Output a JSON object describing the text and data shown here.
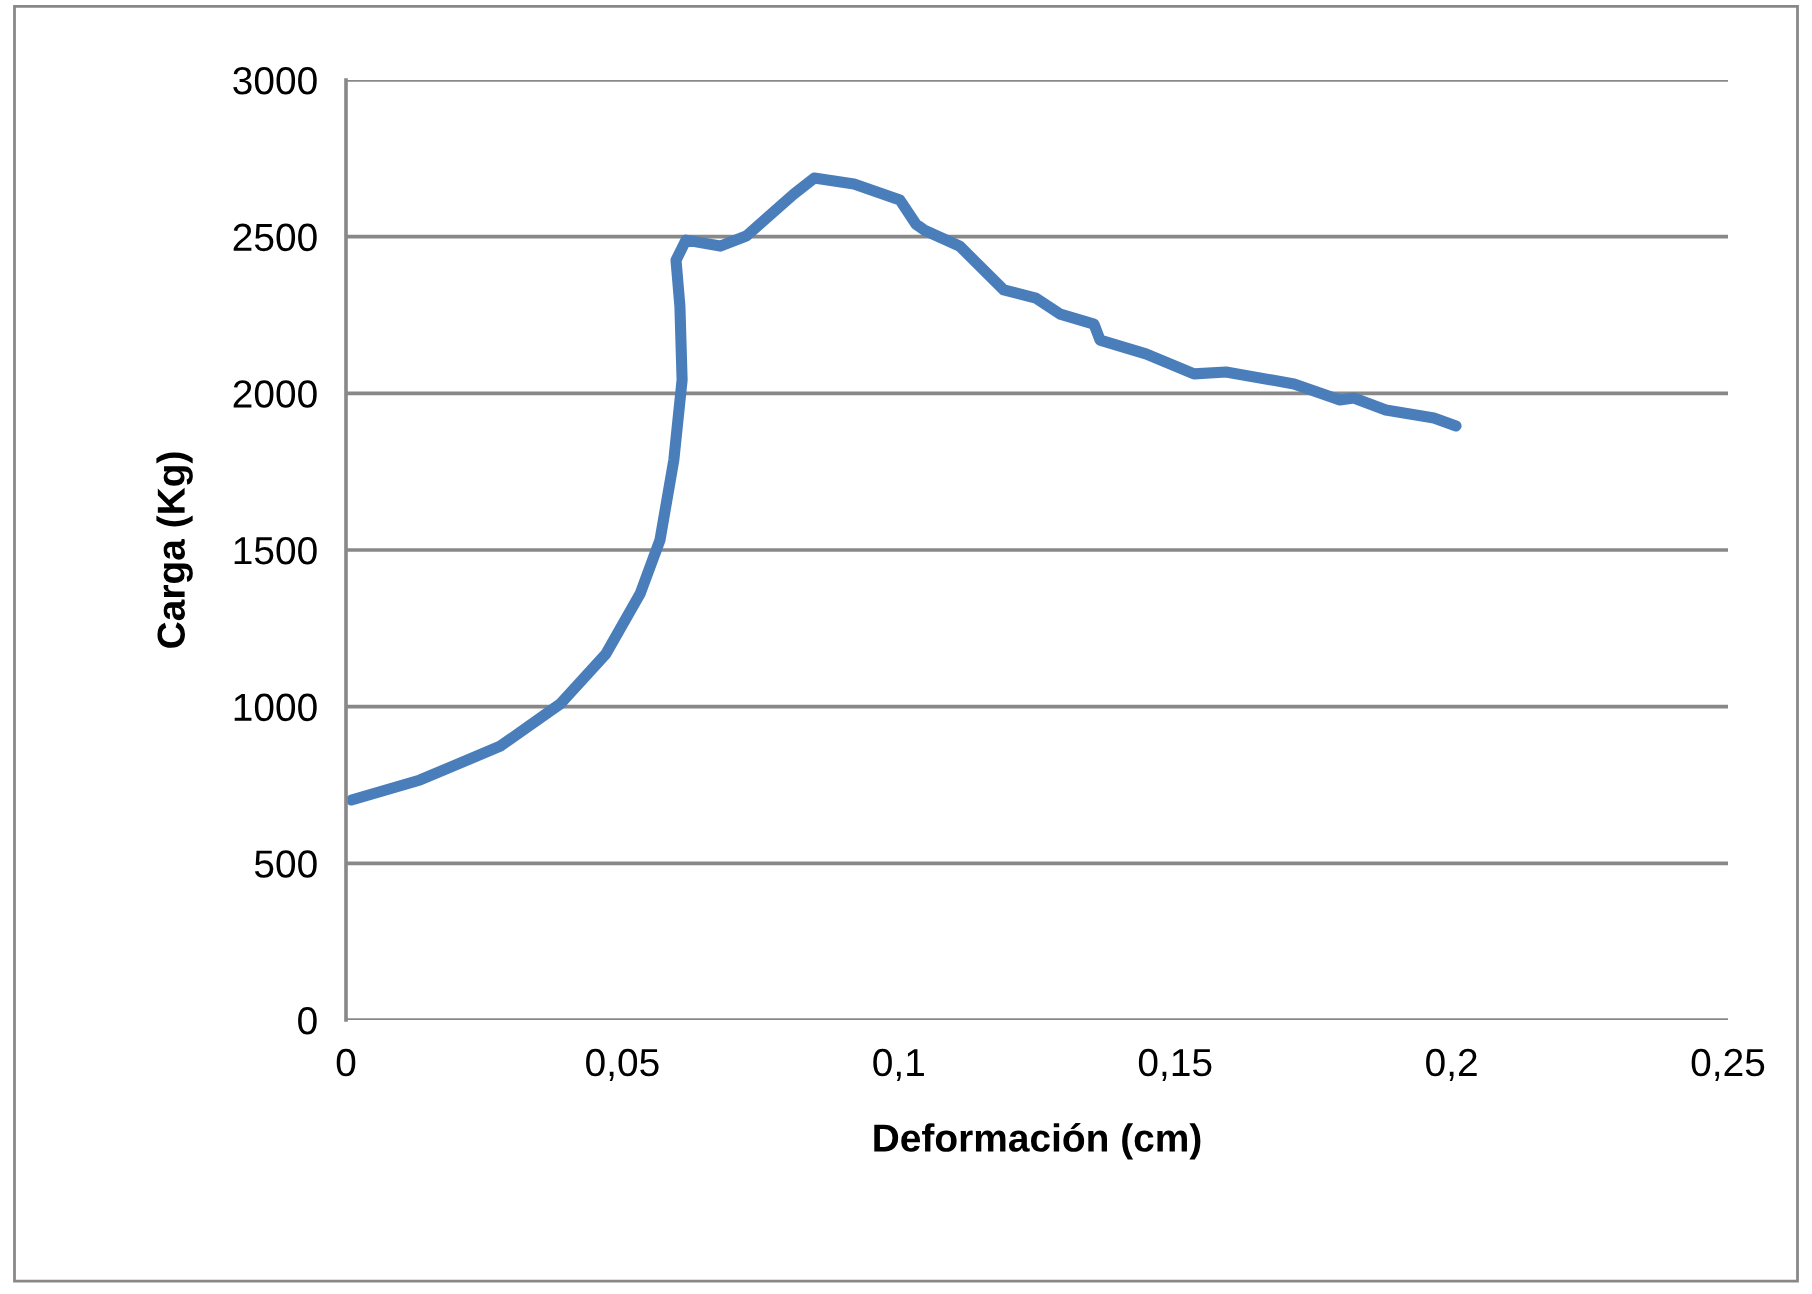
{
  "chart_data": {
    "type": "line",
    "xlabel": "Deformación (cm)",
    "ylabel": "Carga (Kg)",
    "xlim": [
      0,
      0.25
    ],
    "xticks": [
      0,
      {
        "value": 0.05,
        "label": "0,05"
      },
      {
        "value": 0.1,
        "label": "0,1"
      },
      {
        "value": 0.15,
        "label": "0,15"
      },
      {
        "value": 0.2,
        "label": "0,2"
      },
      {
        "value": 0.25,
        "label": "0,25"
      }
    ],
    "ylim": [
      0,
      3000
    ],
    "yticks": [
      0,
      500,
      1000,
      1500,
      2000,
      2500,
      3000
    ],
    "grid": "y",
    "legend": false,
    "marker": "none",
    "line_style": "solid",
    "series": [
      {
        "color": "#4a7ebb",
        "x": [
          0.001,
          0.0134,
          0.0279,
          0.0387,
          0.047,
          0.0532,
          0.0568,
          0.0593,
          0.0608,
          0.0604,
          0.0597,
          0.0615,
          0.0677,
          0.0724,
          0.081,
          0.0847,
          0.0919,
          0.1002,
          0.1031,
          0.1046,
          0.111,
          0.119,
          0.1248,
          0.1292,
          0.1353,
          0.1364,
          0.1447,
          0.1534,
          0.1592,
          0.1715,
          0.1798,
          0.1823,
          0.1881,
          0.1968,
          0.2008
        ],
        "values": [
          702,
          766,
          874,
          1008,
          1168,
          1360,
          1532,
          1787,
          2043,
          2279,
          2425,
          2489,
          2470,
          2502,
          2636,
          2687,
          2668,
          2617,
          2540,
          2521,
          2470,
          2330,
          2304,
          2253,
          2221,
          2170,
          2126,
          2062,
          2068,
          2030,
          1979,
          1985,
          1947,
          1921,
          1896
        ]
      }
    ]
  }
}
